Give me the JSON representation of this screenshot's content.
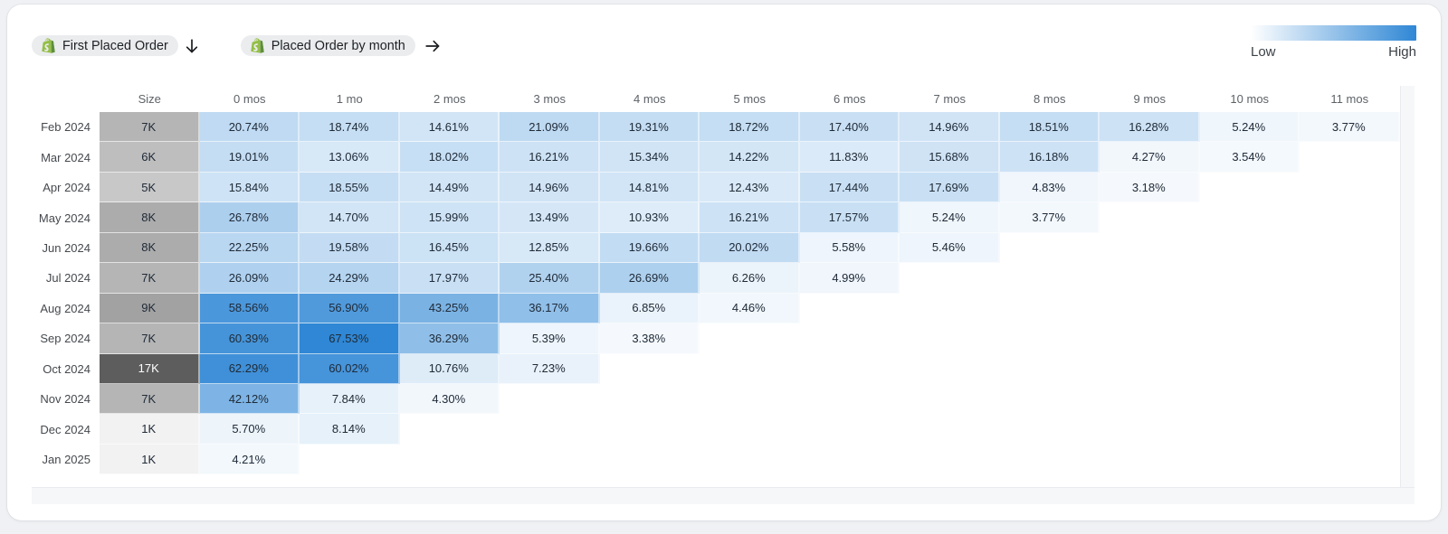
{
  "page": {
    "background_color": "#f0f1f4",
    "card_background_color": "#ffffff"
  },
  "toolbar": {
    "chips": [
      {
        "label": "First Placed Order",
        "icon": "shopify",
        "arrow": "down"
      },
      {
        "label": "Placed Order by month",
        "icon": "shopify",
        "arrow": "right"
      }
    ]
  },
  "legend": {
    "low_label": "Low",
    "high_label": "High",
    "low_color": "#ffffff",
    "high_color": "#2f87d5"
  },
  "chart_data": {
    "type": "heatmap",
    "columns": [
      "Size",
      "0 mos",
      "1 mo",
      "2 mos",
      "3 mos",
      "4 mos",
      "5 mos",
      "6 mos",
      "7 mos",
      "8 mos",
      "9 mos",
      "10 mos",
      "11 mos"
    ],
    "value_suffix": "%",
    "rows": [
      {
        "label": "Feb 2024",
        "size": "7K",
        "size_k": 7,
        "values": [
          20.74,
          18.74,
          14.61,
          21.09,
          19.31,
          18.72,
          17.4,
          14.96,
          18.51,
          16.28,
          5.24,
          3.77
        ]
      },
      {
        "label": "Mar 2024",
        "size": "6K",
        "size_k": 6,
        "values": [
          19.01,
          13.06,
          18.02,
          16.21,
          15.34,
          14.22,
          11.83,
          15.68,
          16.18,
          4.27,
          3.54
        ]
      },
      {
        "label": "Apr 2024",
        "size": "5K",
        "size_k": 5,
        "values": [
          15.84,
          18.55,
          14.49,
          14.96,
          14.81,
          12.43,
          17.44,
          17.69,
          4.83,
          3.18
        ]
      },
      {
        "label": "May 2024",
        "size": "8K",
        "size_k": 8,
        "values": [
          26.78,
          14.7,
          15.99,
          13.49,
          10.93,
          16.21,
          17.57,
          5.24,
          3.77
        ]
      },
      {
        "label": "Jun 2024",
        "size": "8K",
        "size_k": 8,
        "values": [
          22.25,
          19.58,
          16.45,
          12.85,
          19.66,
          20.02,
          5.58,
          5.46
        ]
      },
      {
        "label": "Jul 2024",
        "size": "7K",
        "size_k": 7,
        "values": [
          26.09,
          24.29,
          17.97,
          25.4,
          26.69,
          6.26,
          4.99
        ]
      },
      {
        "label": "Aug 2024",
        "size": "9K",
        "size_k": 9,
        "values": [
          58.56,
          56.9,
          43.25,
          36.17,
          6.85,
          4.46
        ]
      },
      {
        "label": "Sep 2024",
        "size": "7K",
        "size_k": 7,
        "values": [
          60.39,
          67.53,
          36.29,
          5.39,
          3.38
        ]
      },
      {
        "label": "Oct 2024",
        "size": "17K",
        "size_k": 17,
        "values": [
          62.29,
          60.02,
          10.76,
          7.23
        ]
      },
      {
        "label": "Nov 2024",
        "size": "7K",
        "size_k": 7,
        "values": [
          42.12,
          7.84,
          4.3
        ]
      },
      {
        "label": "Dec 2024",
        "size": "1K",
        "size_k": 1,
        "values": [
          5.7,
          8.14
        ]
      },
      {
        "label": "Jan 2025",
        "size": "1K",
        "size_k": 1,
        "values": [
          4.21
        ]
      }
    ],
    "color_scale": {
      "min": 0,
      "max": 67.53,
      "low": "#ffffff",
      "high": "#2f87d5"
    },
    "size_scale": {
      "max_k": 17,
      "low": "#ffffff",
      "high": "#5d5d5d",
      "gamma": 0.88,
      "light_text_threshold": 0.7
    },
    "legend_position": "top-right",
    "grid": false
  }
}
